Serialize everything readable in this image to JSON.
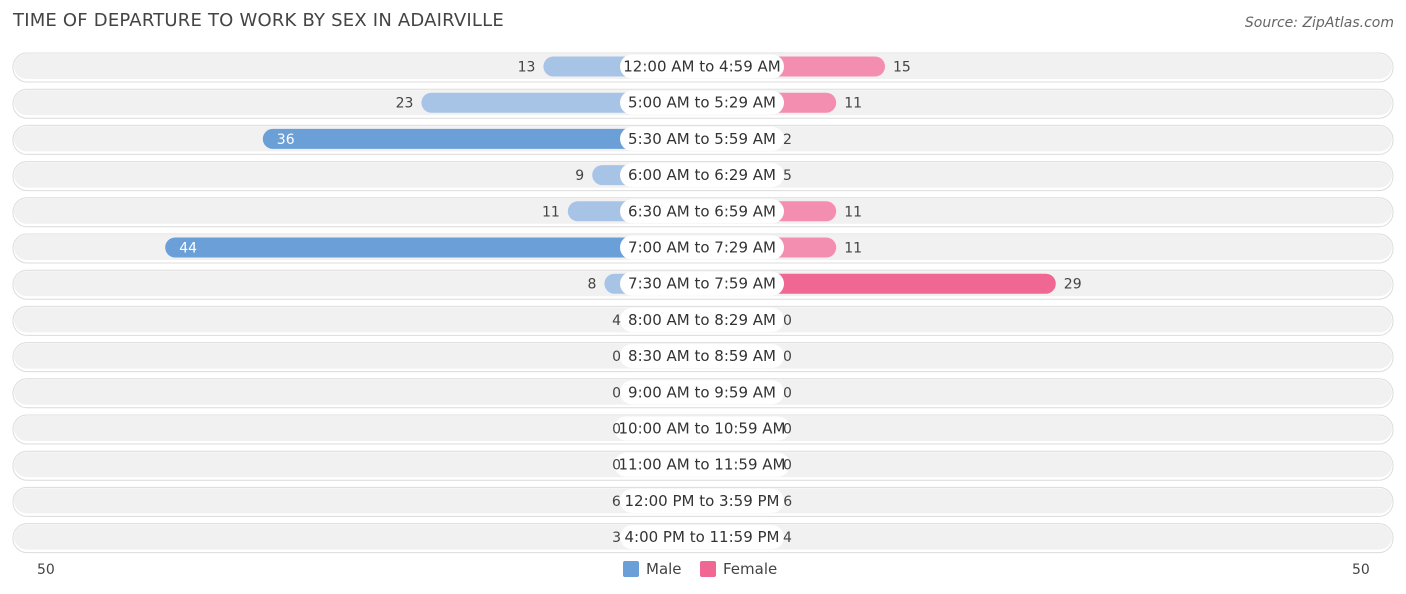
{
  "header": {
    "title": "TIME OF DEPARTURE TO WORK BY SEX IN ADAIRVILLE",
    "source": "Source: ZipAtlas.com"
  },
  "legend": {
    "male": "Male",
    "female": "Female"
  },
  "axis": {
    "left_label": "50",
    "right_label": "50"
  },
  "colors": {
    "male_light": "#a7c4e6",
    "male_strong": "#6a9fd8",
    "female_light": "#f5a8c1",
    "female_strong": "#f06793",
    "row_bg": "#f1f1f1"
  },
  "chart_data": {
    "type": "bar",
    "orientation": "horizontal-diverging",
    "title": "TIME OF DEPARTURE TO WORK BY SEX IN ADAIRVILLE",
    "xlim": [
      -50,
      50
    ],
    "categories": [
      "12:00 AM to 4:59 AM",
      "5:00 AM to 5:29 AM",
      "5:30 AM to 5:59 AM",
      "6:00 AM to 6:29 AM",
      "6:30 AM to 6:59 AM",
      "7:00 AM to 7:29 AM",
      "7:30 AM to 7:59 AM",
      "8:00 AM to 8:29 AM",
      "8:30 AM to 8:59 AM",
      "9:00 AM to 9:59 AM",
      "10:00 AM to 10:59 AM",
      "11:00 AM to 11:59 AM",
      "12:00 PM to 3:59 PM",
      "4:00 PM to 11:59 PM"
    ],
    "series": [
      {
        "name": "Male",
        "values": [
          13,
          23,
          36,
          9,
          11,
          44,
          8,
          4,
          0,
          0,
          0,
          0,
          6,
          3
        ]
      },
      {
        "name": "Female",
        "values": [
          15,
          11,
          2,
          5,
          11,
          11,
          29,
          0,
          0,
          0,
          0,
          0,
          6,
          4
        ]
      }
    ],
    "legend_position": "bottom-center"
  }
}
